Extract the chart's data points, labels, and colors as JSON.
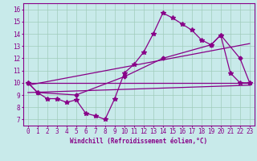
{
  "bg_color": "#c8eaea",
  "line_color": "#880088",
  "grid_color": "#a0ccbb",
  "xlabel": "Windchill (Refroidissement éolien,°C)",
  "xlabel_fontsize": 5.5,
  "xticks": [
    0,
    1,
    2,
    3,
    4,
    5,
    6,
    7,
    8,
    9,
    10,
    11,
    12,
    13,
    14,
    15,
    16,
    17,
    18,
    19,
    20,
    21,
    22,
    23
  ],
  "yticks": [
    7,
    8,
    9,
    10,
    11,
    12,
    13,
    14,
    15,
    16
  ],
  "xlim": [
    -0.5,
    23.5
  ],
  "ylim": [
    6.5,
    16.5
  ],
  "tick_fontsize": 5.5,
  "series_main_x": [
    0,
    1,
    2,
    3,
    4,
    5,
    6,
    7,
    8,
    9,
    10,
    11,
    12,
    13,
    14,
    15,
    16,
    17,
    18,
    19,
    20,
    21,
    22,
    23
  ],
  "series_main_y": [
    10.0,
    9.2,
    8.7,
    8.7,
    8.4,
    8.6,
    7.5,
    7.3,
    7.0,
    8.7,
    10.8,
    11.5,
    12.5,
    14.0,
    15.7,
    15.3,
    14.8,
    14.3,
    13.5,
    13.1,
    13.9,
    10.8,
    10.0,
    10.0
  ],
  "line1": [
    [
      0,
      23
    ],
    [
      10.0,
      10.0
    ]
  ],
  "line2": [
    [
      0,
      23
    ],
    [
      9.2,
      9.8
    ]
  ],
  "line3": [
    [
      0,
      23
    ],
    [
      9.8,
      13.2
    ]
  ],
  "series_smooth_x": [
    0,
    1,
    5,
    10,
    14,
    19,
    20,
    22,
    23
  ],
  "series_smooth_y": [
    10.0,
    9.2,
    9.0,
    10.5,
    12.0,
    13.1,
    13.9,
    12.0,
    10.0
  ]
}
